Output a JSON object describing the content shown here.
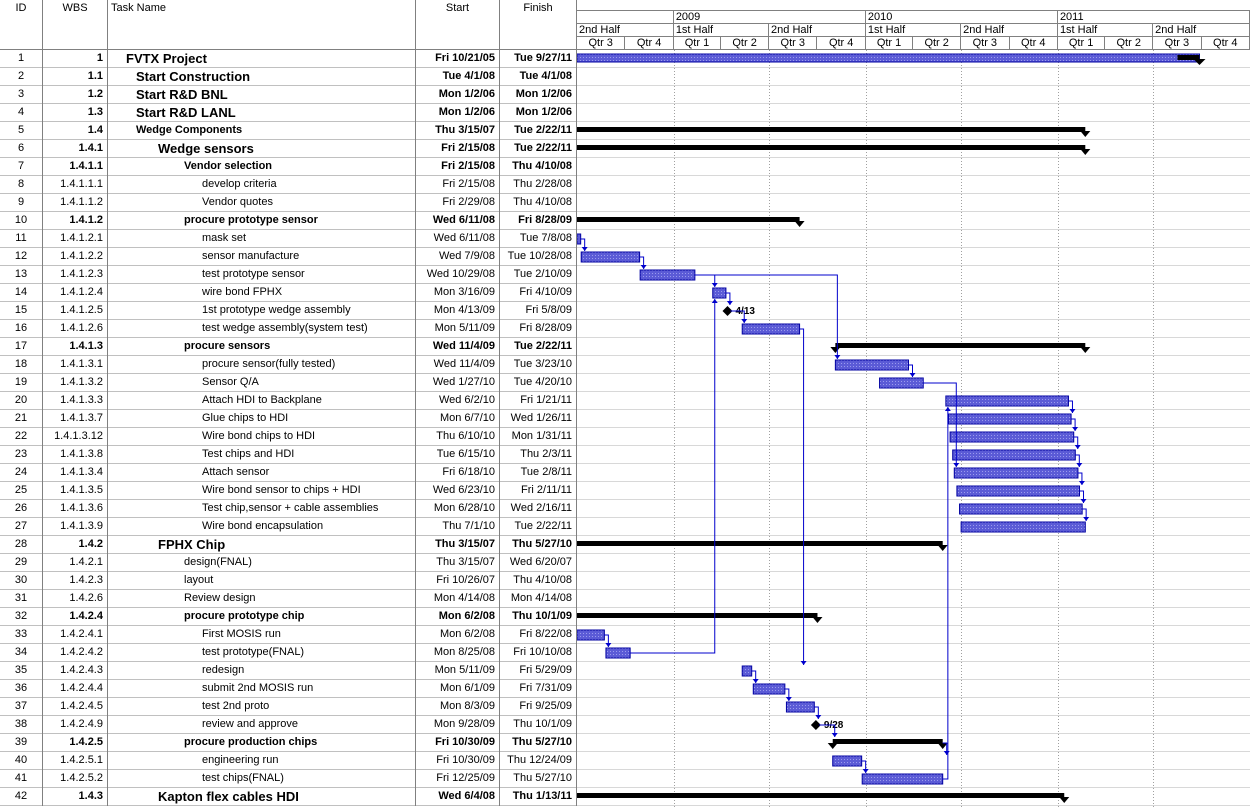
{
  "columns": {
    "id": "ID",
    "wbs": "WBS",
    "name": "Task Name",
    "start": "Start",
    "finish": "Finish"
  },
  "timescale": {
    "years": [
      {
        "label": "",
        "from": "2008-07-01",
        "to": "2009-01-01"
      },
      {
        "label": "2009",
        "from": "2009-01-01",
        "to": "2010-01-01"
      },
      {
        "label": "2010",
        "from": "2010-01-01",
        "to": "2011-01-01"
      },
      {
        "label": "2011",
        "from": "2011-01-01",
        "to": "2012-01-01"
      }
    ],
    "halves": [
      {
        "label": "2nd Half",
        "from": "2008-07-01",
        "to": "2009-01-01"
      },
      {
        "label": "1st Half",
        "from": "2009-01-01",
        "to": "2009-07-01"
      },
      {
        "label": "2nd Half",
        "from": "2009-07-01",
        "to": "2010-01-01"
      },
      {
        "label": "1st Half",
        "from": "2010-01-01",
        "to": "2010-07-01"
      },
      {
        "label": "2nd Half",
        "from": "2010-07-01",
        "to": "2011-01-01"
      },
      {
        "label": "1st Half",
        "from": "2011-01-01",
        "to": "2011-07-01"
      },
      {
        "label": "2nd Half",
        "from": "2011-07-01",
        "to": "2012-01-01"
      }
    ],
    "quarters": [
      "Qtr 3",
      "Qtr 4",
      "Qtr 1",
      "Qtr 2",
      "Qtr 3",
      "Qtr 4",
      "Qtr 1",
      "Qtr 2",
      "Qtr 3",
      "Qtr 4",
      "Qtr 1",
      "Qtr 2",
      "Qtr 3",
      "Qtr 4"
    ],
    "view_start": "2008-07-01",
    "view_end": "2012-01-01"
  },
  "tasks": [
    {
      "id": "1",
      "wbs": "1",
      "name": "FVTX Project",
      "start": "Fri 10/21/05",
      "finish": "Tue 9/27/11",
      "indent": 0,
      "style": "big",
      "bar": "summary-blue",
      "s": "2005-10-21",
      "f": "2011-09-27"
    },
    {
      "id": "2",
      "wbs": "1.1",
      "name": "Start Construction",
      "start": "Tue 4/1/08",
      "finish": "Tue 4/1/08",
      "indent": 1,
      "style": "big"
    },
    {
      "id": "3",
      "wbs": "1.2",
      "name": "Start R&D BNL",
      "start": "Mon 1/2/06",
      "finish": "Mon 1/2/06",
      "indent": 1,
      "style": "big"
    },
    {
      "id": "4",
      "wbs": "1.3",
      "name": "Start R&D LANL",
      "start": "Mon 1/2/06",
      "finish": "Mon 1/2/06",
      "indent": 1,
      "style": "big"
    },
    {
      "id": "5",
      "wbs": "1.4",
      "name": "Wedge Components",
      "start": "Thu 3/15/07",
      "finish": "Tue 2/22/11",
      "indent": 1,
      "style": "bold",
      "bar": "summary",
      "s": "2007-03-15",
      "f": "2011-02-22"
    },
    {
      "id": "6",
      "wbs": "1.4.1",
      "name": "Wedge sensors",
      "start": "Fri 2/15/08",
      "finish": "Tue 2/22/11",
      "indent": 2,
      "style": "big",
      "bar": "summary",
      "s": "2008-02-15",
      "f": "2011-02-22"
    },
    {
      "id": "7",
      "wbs": "1.4.1.1",
      "name": "Vendor selection",
      "start": "Fri 2/15/08",
      "finish": "Thu 4/10/08",
      "indent": 3,
      "style": "bold"
    },
    {
      "id": "8",
      "wbs": "1.4.1.1.1",
      "name": "develop criteria",
      "start": "Fri 2/15/08",
      "finish": "Thu 2/28/08",
      "indent": 4,
      "style": ""
    },
    {
      "id": "9",
      "wbs": "1.4.1.1.2",
      "name": "Vendor quotes",
      "start": "Fri 2/29/08",
      "finish": "Thu 4/10/08",
      "indent": 4,
      "style": ""
    },
    {
      "id": "10",
      "wbs": "1.4.1.2",
      "name": "procure prototype sensor",
      "start": "Wed 6/11/08",
      "finish": "Fri 8/28/09",
      "indent": 3,
      "style": "bold",
      "bar": "summary",
      "s": "2008-06-11",
      "f": "2009-08-28"
    },
    {
      "id": "11",
      "wbs": "1.4.1.2.1",
      "name": "mask set",
      "start": "Wed 6/11/08",
      "finish": "Tue 7/8/08",
      "indent": 4,
      "style": "",
      "bar": "task",
      "s": "2008-06-11",
      "f": "2008-07-08"
    },
    {
      "id": "12",
      "wbs": "1.4.1.2.2",
      "name": "sensor manufacture",
      "start": "Wed 7/9/08",
      "finish": "Tue 10/28/08",
      "indent": 4,
      "style": "",
      "bar": "task",
      "s": "2008-07-09",
      "f": "2008-10-28"
    },
    {
      "id": "13",
      "wbs": "1.4.1.2.3",
      "name": "test prototype sensor",
      "start": "Wed 10/29/08",
      "finish": "Tue 2/10/09",
      "indent": 4,
      "style": "",
      "bar": "task",
      "s": "2008-10-29",
      "f": "2009-02-10"
    },
    {
      "id": "14",
      "wbs": "1.4.1.2.4",
      "name": "wire bond FPHX",
      "start": "Mon 3/16/09",
      "finish": "Fri 4/10/09",
      "indent": 4,
      "style": "",
      "bar": "task",
      "s": "2009-03-16",
      "f": "2009-04-10"
    },
    {
      "id": "15",
      "wbs": "1.4.1.2.5",
      "name": "1st prototype wedge assembly",
      "start": "Mon 4/13/09",
      "finish": "Fri 5/8/09",
      "indent": 4,
      "style": "",
      "bar": "milestone",
      "s": "2009-04-13",
      "label": "4/13"
    },
    {
      "id": "16",
      "wbs": "1.4.1.2.6",
      "name": "test wedge assembly(system test)",
      "start": "Mon 5/11/09",
      "finish": "Fri 8/28/09",
      "indent": 4,
      "style": "",
      "bar": "task",
      "s": "2009-05-11",
      "f": "2009-08-28"
    },
    {
      "id": "17",
      "wbs": "1.4.1.3",
      "name": "procure sensors",
      "start": "Wed 11/4/09",
      "finish": "Tue 2/22/11",
      "indent": 3,
      "style": "bold",
      "bar": "summary",
      "s": "2009-11-04",
      "f": "2011-02-22"
    },
    {
      "id": "18",
      "wbs": "1.4.1.3.1",
      "name": "procure sensor(fully tested)",
      "start": "Wed 11/4/09",
      "finish": "Tue 3/23/10",
      "indent": 4,
      "style": "",
      "bar": "task",
      "s": "2009-11-04",
      "f": "2010-03-23"
    },
    {
      "id": "19",
      "wbs": "1.4.1.3.2",
      "name": "Sensor Q/A",
      "start": "Wed 1/27/10",
      "finish": "Tue 4/20/10",
      "indent": 4,
      "style": "",
      "bar": "task",
      "s": "2010-01-27",
      "f": "2010-04-20"
    },
    {
      "id": "20",
      "wbs": "1.4.1.3.3",
      "name": "Attach HDI to Backplane",
      "start": "Wed 6/2/10",
      "finish": "Fri 1/21/11",
      "indent": 4,
      "style": "",
      "bar": "task",
      "s": "2010-06-02",
      "f": "2011-01-21"
    },
    {
      "id": "21",
      "wbs": "1.4.1.3.7",
      "name": "Glue chips to HDI",
      "start": "Mon 6/7/10",
      "finish": "Wed 1/26/11",
      "indent": 4,
      "style": "",
      "bar": "task",
      "s": "2010-06-07",
      "f": "2011-01-26"
    },
    {
      "id": "22",
      "wbs": "1.4.1.3.12",
      "name": "Wire bond chips to HDI",
      "start": "Thu 6/10/10",
      "finish": "Mon 1/31/11",
      "indent": 4,
      "style": "",
      "bar": "task",
      "s": "2010-06-10",
      "f": "2011-01-31"
    },
    {
      "id": "23",
      "wbs": "1.4.1.3.8",
      "name": "Test chips and HDI",
      "start": "Tue 6/15/10",
      "finish": "Thu 2/3/11",
      "indent": 4,
      "style": "",
      "bar": "task",
      "s": "2010-06-15",
      "f": "2011-02-03"
    },
    {
      "id": "24",
      "wbs": "1.4.1.3.4",
      "name": "Attach sensor",
      "start": "Fri 6/18/10",
      "finish": "Tue 2/8/11",
      "indent": 4,
      "style": "",
      "bar": "task",
      "s": "2010-06-18",
      "f": "2011-02-08"
    },
    {
      "id": "25",
      "wbs": "1.4.1.3.5",
      "name": "Wire bond sensor to chips + HDI",
      "start": "Wed 6/23/10",
      "finish": "Fri 2/11/11",
      "indent": 4,
      "style": "",
      "bar": "task",
      "s": "2010-06-23",
      "f": "2011-02-11"
    },
    {
      "id": "26",
      "wbs": "1.4.1.3.6",
      "name": "Test chip,sensor + cable assemblies",
      "start": "Mon 6/28/10",
      "finish": "Wed 2/16/11",
      "indent": 4,
      "style": "",
      "bar": "task",
      "s": "2010-06-28",
      "f": "2011-02-16"
    },
    {
      "id": "27",
      "wbs": "1.4.1.3.9",
      "name": "Wire bond encapsulation",
      "start": "Thu 7/1/10",
      "finish": "Tue 2/22/11",
      "indent": 4,
      "style": "",
      "bar": "task",
      "s": "2010-07-01",
      "f": "2011-02-22"
    },
    {
      "id": "28",
      "wbs": "1.4.2",
      "name": "FPHX Chip",
      "start": "Thu 3/15/07",
      "finish": "Thu 5/27/10",
      "indent": 2,
      "style": "big",
      "bar": "summary",
      "s": "2007-03-15",
      "f": "2010-05-27"
    },
    {
      "id": "29",
      "wbs": "1.4.2.1",
      "name": "design(FNAL)",
      "start": "Thu 3/15/07",
      "finish": "Wed 6/20/07",
      "indent": 3,
      "style": ""
    },
    {
      "id": "30",
      "wbs": "1.4.2.3",
      "name": "layout",
      "start": "Fri 10/26/07",
      "finish": "Thu 4/10/08",
      "indent": 3,
      "style": ""
    },
    {
      "id": "31",
      "wbs": "1.4.2.6",
      "name": "Review design",
      "start": "Mon 4/14/08",
      "finish": "Mon 4/14/08",
      "indent": 3,
      "style": ""
    },
    {
      "id": "32",
      "wbs": "1.4.2.4",
      "name": "procure prototype chip",
      "start": "Mon 6/2/08",
      "finish": "Thu 10/1/09",
      "indent": 3,
      "style": "bold",
      "bar": "summary",
      "s": "2008-06-02",
      "f": "2009-10-01"
    },
    {
      "id": "33",
      "wbs": "1.4.2.4.1",
      "name": "First MOSIS run",
      "start": "Mon 6/2/08",
      "finish": "Fri 8/22/08",
      "indent": 4,
      "style": "",
      "bar": "task",
      "s": "2008-06-02",
      "f": "2008-08-22"
    },
    {
      "id": "34",
      "wbs": "1.4.2.4.2",
      "name": "test prototype(FNAL)",
      "start": "Mon 8/25/08",
      "finish": "Fri 10/10/08",
      "indent": 4,
      "style": "",
      "bar": "task",
      "s": "2008-08-25",
      "f": "2008-10-10"
    },
    {
      "id": "35",
      "wbs": "1.4.2.4.3",
      "name": "redesign",
      "start": "Mon 5/11/09",
      "finish": "Fri 5/29/09",
      "indent": 4,
      "style": "",
      "bar": "task",
      "s": "2009-05-11",
      "f": "2009-05-29"
    },
    {
      "id": "36",
      "wbs": "1.4.2.4.4",
      "name": "submit 2nd MOSIS run",
      "start": "Mon 6/1/09",
      "finish": "Fri 7/31/09",
      "indent": 4,
      "style": "",
      "bar": "task",
      "s": "2009-06-01",
      "f": "2009-07-31"
    },
    {
      "id": "37",
      "wbs": "1.4.2.4.5",
      "name": "test 2nd proto",
      "start": "Mon 8/3/09",
      "finish": "Fri 9/25/09",
      "indent": 4,
      "style": "",
      "bar": "task",
      "s": "2009-08-03",
      "f": "2009-09-25"
    },
    {
      "id": "38",
      "wbs": "1.4.2.4.9",
      "name": "review and approve",
      "start": "Mon 9/28/09",
      "finish": "Thu 10/1/09",
      "indent": 4,
      "style": "",
      "bar": "milestone",
      "s": "2009-09-28",
      "label": "9/28"
    },
    {
      "id": "39",
      "wbs": "1.4.2.5",
      "name": "procure production chips",
      "start": "Fri 10/30/09",
      "finish": "Thu 5/27/10",
      "indent": 3,
      "style": "bold",
      "bar": "summary",
      "s": "2009-10-30",
      "f": "2010-05-27"
    },
    {
      "id": "40",
      "wbs": "1.4.2.5.1",
      "name": "engineering run",
      "start": "Fri 10/30/09",
      "finish": "Thu 12/24/09",
      "indent": 4,
      "style": "",
      "bar": "task",
      "s": "2009-10-30",
      "f": "2009-12-24"
    },
    {
      "id": "41",
      "wbs": "1.4.2.5.2",
      "name": "test chips(FNAL)",
      "start": "Fri 12/25/09",
      "finish": "Thu 5/27/10",
      "indent": 4,
      "style": "",
      "bar": "task",
      "s": "2009-12-25",
      "f": "2010-05-27"
    },
    {
      "id": "42",
      "wbs": "1.4.3",
      "name": "Kapton flex cables HDI",
      "start": "Wed 6/4/08",
      "finish": "Thu 1/13/11",
      "indent": 2,
      "style": "big",
      "bar": "summary",
      "s": "2008-06-04",
      "f": "2011-01-13"
    }
  ],
  "colors": {
    "bar_fill": "#5b5bd6",
    "bar_border": "#0000a0",
    "link": "#0000cc",
    "summary": "#000000",
    "grid": "#808080"
  }
}
